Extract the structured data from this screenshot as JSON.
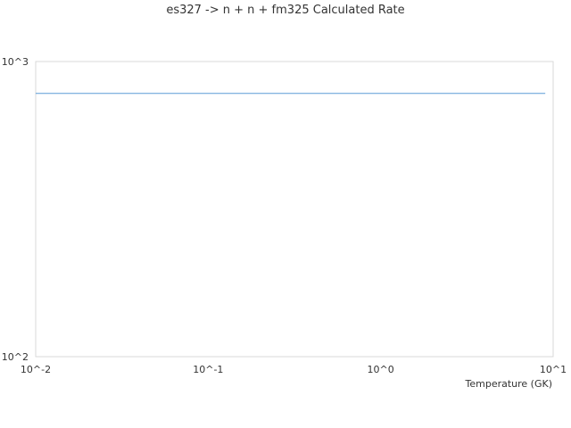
{
  "chart_data": {
    "type": "line",
    "title": "es327 -> n + n + fm325 Calculated Rate",
    "xlabel": "Temperature (GK)",
    "ylabel": "",
    "xscale": "log",
    "yscale": "log",
    "xlim": [
      0.01,
      10
    ],
    "ylim": [
      100,
      1000
    ],
    "xticks": [
      "10^-2",
      "10^-1",
      "10^0",
      "10^1"
    ],
    "yticks": [
      "10^2",
      "10^3"
    ],
    "grid": false,
    "series": [
      {
        "x": [
          0.01,
          9
        ],
        "y": [
          780,
          780
        ],
        "color": "#5b9bd5"
      }
    ]
  }
}
